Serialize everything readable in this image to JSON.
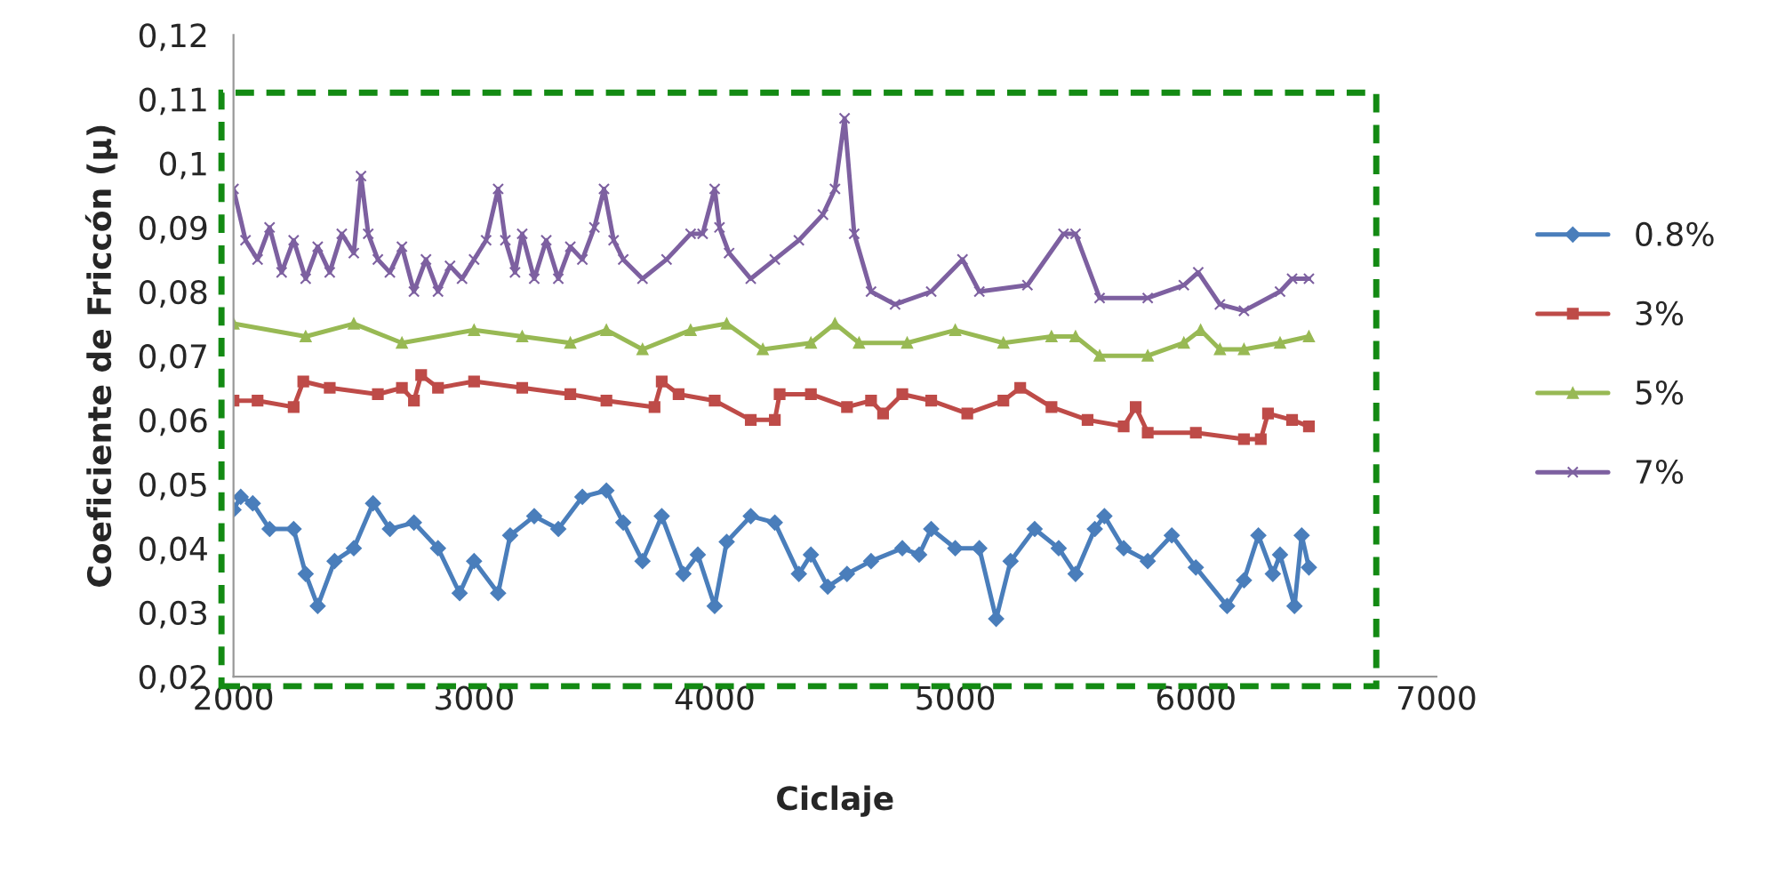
{
  "chart_data": {
    "type": "line",
    "xlabel": "Ciclaje",
    "ylabel": "Coeficiente de Friccón (µ)",
    "xlim": [
      2000,
      7000
    ],
    "xticks": [
      2000,
      3000,
      4000,
      5000,
      6000,
      7000
    ],
    "ylim": [
      0.02,
      0.12
    ],
    "yticks": [
      {
        "value": 0.02,
        "label": "0,02"
      },
      {
        "value": 0.03,
        "label": "0,03"
      },
      {
        "value": 0.04,
        "label": "0,04"
      },
      {
        "value": 0.05,
        "label": "0,05"
      },
      {
        "value": 0.06,
        "label": "0,06"
      },
      {
        "value": 0.07,
        "label": "0,07"
      },
      {
        "value": 0.08,
        "label": "0,08"
      },
      {
        "value": 0.09,
        "label": "0,09"
      },
      {
        "value": 0.1,
        "label": "0,1"
      },
      {
        "value": 0.11,
        "label": "0,11"
      },
      {
        "value": 0.12,
        "label": "0,12"
      }
    ],
    "grid": false,
    "legend": "right",
    "series": [
      {
        "name": "0.8%",
        "color": "#4a7ebb",
        "marker": "diamond",
        "x": [
          2000,
          2030,
          2080,
          2150,
          2250,
          2300,
          2350,
          2420,
          2500,
          2580,
          2650,
          2750,
          2850,
          2940,
          3000,
          3100,
          3150,
          3250,
          3350,
          3450,
          3550,
          3620,
          3700,
          3780,
          3870,
          3930,
          4000,
          4050,
          4150,
          4250,
          4350,
          4400,
          4470,
          4550,
          4650,
          4780,
          4850,
          4900,
          5000,
          5100,
          5170,
          5230,
          5330,
          5430,
          5500,
          5580,
          5620,
          5700,
          5800,
          5900,
          6000,
          6130,
          6200,
          6260,
          6320,
          6350,
          6410,
          6440,
          6470
        ],
        "values": [
          0.046,
          0.048,
          0.047,
          0.043,
          0.043,
          0.036,
          0.031,
          0.038,
          0.04,
          0.047,
          0.043,
          0.044,
          0.04,
          0.033,
          0.038,
          0.033,
          0.042,
          0.045,
          0.043,
          0.048,
          0.049,
          0.044,
          0.038,
          0.045,
          0.036,
          0.039,
          0.031,
          0.041,
          0.045,
          0.044,
          0.036,
          0.039,
          0.034,
          0.036,
          0.038,
          0.04,
          0.039,
          0.043,
          0.04,
          0.04,
          0.029,
          0.038,
          0.043,
          0.04,
          0.036,
          0.043,
          0.045,
          0.04,
          0.038,
          0.042,
          0.037,
          0.031,
          0.035,
          0.042,
          0.036,
          0.039,
          0.031,
          0.042,
          0.037
        ]
      },
      {
        "name": "3%",
        "color": "#be4b48",
        "marker": "square",
        "x": [
          2000,
          2100,
          2250,
          2290,
          2400,
          2600,
          2700,
          2750,
          2780,
          2850,
          3000,
          3200,
          3400,
          3550,
          3750,
          3780,
          3850,
          4000,
          4150,
          4250,
          4270,
          4400,
          4550,
          4650,
          4700,
          4780,
          4900,
          5050,
          5200,
          5270,
          5400,
          5550,
          5700,
          5750,
          5800,
          6000,
          6200,
          6270,
          6300,
          6400,
          6470
        ],
        "values": [
          0.063,
          0.063,
          0.062,
          0.066,
          0.065,
          0.064,
          0.065,
          0.063,
          0.067,
          0.065,
          0.066,
          0.065,
          0.064,
          0.063,
          0.062,
          0.066,
          0.064,
          0.063,
          0.06,
          0.06,
          0.064,
          0.064,
          0.062,
          0.063,
          0.061,
          0.064,
          0.063,
          0.061,
          0.063,
          0.065,
          0.062,
          0.06,
          0.059,
          0.062,
          0.058,
          0.058,
          0.057,
          0.057,
          0.061,
          0.06,
          0.059
        ]
      },
      {
        "name": "5%",
        "color": "#98b954",
        "marker": "triangle",
        "x": [
          2000,
          2300,
          2500,
          2700,
          3000,
          3200,
          3400,
          3550,
          3700,
          3900,
          4050,
          4200,
          4400,
          4500,
          4600,
          4800,
          5000,
          5200,
          5400,
          5500,
          5600,
          5800,
          5950,
          6020,
          6100,
          6200,
          6350,
          6470
        ],
        "values": [
          0.075,
          0.073,
          0.075,
          0.072,
          0.074,
          0.073,
          0.072,
          0.074,
          0.071,
          0.074,
          0.075,
          0.071,
          0.072,
          0.075,
          0.072,
          0.072,
          0.074,
          0.072,
          0.073,
          0.073,
          0.07,
          0.07,
          0.072,
          0.074,
          0.071,
          0.071,
          0.072,
          0.073
        ]
      },
      {
        "name": "7%",
        "color": "#7d60a0",
        "marker": "cross",
        "x": [
          2000,
          2050,
          2100,
          2150,
          2200,
          2250,
          2300,
          2350,
          2400,
          2450,
          2500,
          2530,
          2560,
          2600,
          2650,
          2700,
          2750,
          2800,
          2850,
          2900,
          2950,
          3000,
          3050,
          3100,
          3130,
          3170,
          3200,
          3250,
          3300,
          3350,
          3400,
          3450,
          3500,
          3540,
          3580,
          3620,
          3700,
          3800,
          3900,
          3950,
          4000,
          4020,
          4060,
          4150,
          4250,
          4350,
          4450,
          4500,
          4540,
          4580,
          4650,
          4750,
          4900,
          5030,
          5100,
          5300,
          5450,
          5500,
          5600,
          5800,
          5950,
          6010,
          6100,
          6200,
          6350,
          6400,
          6470
        ],
        "values": [
          0.096,
          0.088,
          0.085,
          0.09,
          0.083,
          0.088,
          0.082,
          0.087,
          0.083,
          0.089,
          0.086,
          0.098,
          0.089,
          0.085,
          0.083,
          0.087,
          0.08,
          0.085,
          0.08,
          0.084,
          0.082,
          0.085,
          0.088,
          0.096,
          0.088,
          0.083,
          0.089,
          0.082,
          0.088,
          0.082,
          0.087,
          0.085,
          0.09,
          0.096,
          0.088,
          0.085,
          0.082,
          0.085,
          0.089,
          0.089,
          0.096,
          0.09,
          0.086,
          0.082,
          0.085,
          0.088,
          0.092,
          0.096,
          0.107,
          0.089,
          0.08,
          0.078,
          0.08,
          0.085,
          0.08,
          0.081,
          0.089,
          0.089,
          0.079,
          0.079,
          0.081,
          0.083,
          0.078,
          0.077,
          0.08,
          0.082,
          0.082
        ]
      }
    ]
  }
}
